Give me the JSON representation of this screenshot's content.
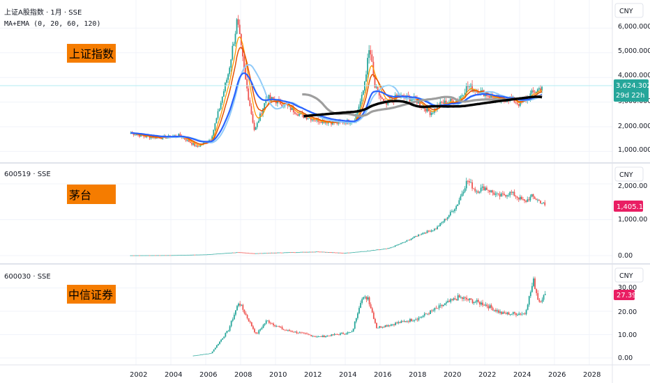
{
  "colors": {
    "up": "#26a69a",
    "down": "#ef5350",
    "label_bg": "#f57c00",
    "blue_price": "#2962ff",
    "pink_price": "#e91e63",
    "grid": "#f0f3fa",
    "divider": "#e0e3eb",
    "current_line": "#b2ebf2"
  },
  "x_axis": {
    "ticks": [
      "2002",
      "2004",
      "2006",
      "2008",
      "2010",
      "2012",
      "2014",
      "2016",
      "2018",
      "2020",
      "2022",
      "2024",
      "2026",
      "2028"
    ]
  },
  "panes": [
    {
      "symbol_line": "上证A股指数 · 1月 · SSE",
      "indicator_line": "MA+EMA (0, 20, 60, 120)",
      "label": "上证指数",
      "currency": "CNY",
      "ticks": [
        "6,000.0000",
        "5,000.0000",
        "4,000.0000",
        "3,000.0000",
        "2,000.0000",
        "1,000.0000"
      ],
      "price_label": "3,624.3026",
      "countdown": "29d 22h",
      "last_value": 3624.3
    },
    {
      "symbol_line": "600519 · SSE",
      "label": "茅台",
      "currency": "CNY",
      "ticks": [
        "2,000.00",
        "1,000.00",
        "0.00"
      ],
      "price_label": "1,405.10",
      "last_value": 1405.1
    },
    {
      "symbol_line": "600030 · SSE",
      "label": "中信证券",
      "currency": "CNY",
      "ticks": [
        "30.00",
        "20.00",
        "10.00",
        "0.00"
      ],
      "price_label": "27.39",
      "last_value": 27.39
    }
  ],
  "chart_data": [
    {
      "type": "line",
      "series": [
        {
          "name": "上证A股指数",
          "x": [
            2001.7,
            2002.5,
            2003.5,
            2004.5,
            2005.5,
            2006.3,
            2006.8,
            2007.3,
            2007.8,
            2008.3,
            2008.8,
            2009.5,
            2010.5,
            2011.5,
            2012.5,
            2013.5,
            2014.5,
            2015.0,
            2015.4,
            2015.7,
            2016.3,
            2017.0,
            2018.0,
            2018.9,
            2019.5,
            2020.5,
            2021.0,
            2022.0,
            2022.8,
            2023.5,
            2024.0,
            2024.7,
            2025.3
          ],
          "values": [
            1750,
            1600,
            1550,
            1650,
            1180,
            1500,
            2800,
            4200,
            6300,
            3800,
            1820,
            3200,
            2900,
            2450,
            2250,
            2150,
            2250,
            3300,
            5200,
            3600,
            2850,
            3250,
            3100,
            2550,
            2950,
            3100,
            3650,
            3350,
            3050,
            3150,
            2900,
            3350,
            3620
          ]
        }
      ]
    },
    {
      "type": "line",
      "series": [
        {
          "name": "600519",
          "x": [
            2001.7,
            2004,
            2006,
            2007.8,
            2008.8,
            2010,
            2012.5,
            2013.9,
            2015.3,
            2016.5,
            2017.5,
            2018.3,
            2019.2,
            2019.9,
            2020.4,
            2021.0,
            2021.5,
            2022.0,
            2022.8,
            2023.5,
            2024.3,
            2024.7,
            2025.5
          ],
          "values": [
            5,
            10,
            30,
            90,
            60,
            80,
            110,
            70,
            130,
            200,
            400,
            600,
            750,
            1100,
            1400,
            2100,
            1800,
            1900,
            1650,
            1750,
            1500,
            1650,
            1405
          ]
        }
      ]
    },
    {
      "type": "line",
      "series": [
        {
          "name": "600030",
          "x": [
            2005.3,
            2006.3,
            2007.3,
            2007.9,
            2008.9,
            2009.5,
            2010.5,
            2012.5,
            2014.4,
            2014.9,
            2015.3,
            2015.8,
            2017.0,
            2018.2,
            2019.2,
            2020.5,
            2021.0,
            2022.0,
            2023.0,
            2024.3,
            2024.8,
            2025.1,
            2025.5
          ],
          "values": [
            1,
            2,
            12,
            24,
            10,
            16,
            12,
            9,
            11,
            25,
            26,
            13,
            15,
            17,
            21,
            26,
            25,
            23,
            19,
            19,
            33,
            24,
            27.39
          ]
        }
      ]
    }
  ]
}
